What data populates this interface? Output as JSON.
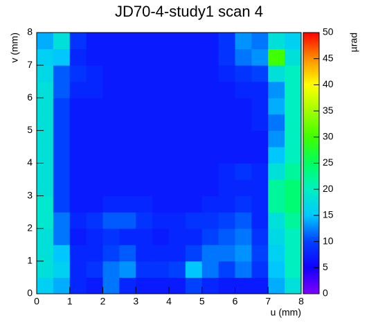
{
  "chart_data": {
    "type": "heatmap",
    "title": "JD70-4-study1 scan 4",
    "xlabel": "u (mm)",
    "ylabel": "v (mm)",
    "zlabel": "µrad",
    "xbins": [
      0,
      0.5,
      1,
      1.5,
      2,
      2.5,
      3,
      3.5,
      4,
      4.5,
      5,
      5.5,
      6,
      6.5,
      7,
      7.5,
      8
    ],
    "ybins": [
      0,
      0.5,
      1,
      1.5,
      2,
      2.5,
      3,
      3.5,
      4,
      4.5,
      5,
      5.5,
      6,
      6.5,
      7,
      7.5,
      8
    ],
    "z": [
      [
        16,
        14,
        8,
        7,
        12,
        8,
        7,
        7,
        7,
        10,
        8,
        7,
        7,
        7,
        14,
        18
      ],
      [
        18,
        16,
        8,
        9,
        12,
        13,
        9,
        9,
        10,
        15,
        12,
        10,
        12,
        9,
        15,
        20
      ],
      [
        18,
        15,
        8,
        8,
        10,
        11,
        8,
        8,
        8,
        10,
        12,
        12,
        13,
        10,
        16,
        20
      ],
      [
        18,
        12,
        7,
        8,
        9,
        8,
        8,
        7,
        8,
        8,
        10,
        11,
        12,
        9,
        17,
        20
      ],
      [
        19,
        12,
        8,
        9,
        11,
        11,
        9,
        8,
        8,
        9,
        9,
        10,
        11,
        8,
        18,
        22
      ],
      [
        19,
        10,
        7,
        7,
        8,
        8,
        8,
        7,
        7,
        7,
        8,
        8,
        9,
        8,
        22,
        24
      ],
      [
        18,
        10,
        7,
        7,
        7,
        7,
        7,
        7,
        7,
        7,
        7,
        8,
        8,
        8,
        22,
        24
      ],
      [
        18,
        10,
        7,
        7,
        7,
        7,
        7,
        7,
        7,
        7,
        7,
        8,
        9,
        8,
        18,
        22
      ],
      [
        18,
        10,
        7,
        7,
        7,
        7,
        7,
        7,
        7,
        7,
        7,
        7,
        7,
        7,
        15,
        20
      ],
      [
        18,
        10,
        7,
        7,
        7,
        7,
        7,
        7,
        7,
        7,
        7,
        7,
        7,
        7,
        13,
        20
      ],
      [
        18,
        10,
        7,
        7,
        7,
        7,
        7,
        7,
        7,
        7,
        7,
        7,
        7,
        8,
        12,
        20
      ],
      [
        18,
        10,
        7,
        7,
        7,
        7,
        7,
        7,
        7,
        7,
        7,
        7,
        7,
        8,
        14,
        20
      ],
      [
        18,
        11,
        8,
        8,
        7,
        7,
        7,
        7,
        7,
        7,
        7,
        7,
        8,
        8,
        13,
        20
      ],
      [
        17,
        11,
        9,
        8,
        7,
        7,
        7,
        7,
        7,
        7,
        7,
        8,
        9,
        10,
        18,
        20
      ],
      [
        16,
        15,
        8,
        7,
        7,
        7,
        7,
        7,
        7,
        7,
        7,
        9,
        12,
        13,
        30,
        18
      ],
      [
        14,
        18,
        9,
        7,
        7,
        7,
        7,
        7,
        7,
        7,
        7,
        9,
        13,
        12,
        18,
        16
      ]
    ],
    "xlim": [
      0,
      8
    ],
    "ylim": [
      0,
      8
    ],
    "zlim": [
      0,
      50
    ],
    "xticks": [
      0,
      1,
      2,
      3,
      4,
      5,
      6,
      7,
      8
    ],
    "yticks": [
      0,
      1,
      2,
      3,
      4,
      5,
      6,
      7,
      8
    ],
    "zticks": [
      0,
      5,
      10,
      15,
      20,
      25,
      30,
      35,
      40,
      45,
      50
    ],
    "colorscale": [
      "#8000ff",
      "#1000ff",
      "#0040ff",
      "#00c8ff",
      "#00f0c0",
      "#00ff60",
      "#40ff00",
      "#a0ff00",
      "#ffff00",
      "#ff9000",
      "#ff0000"
    ]
  }
}
